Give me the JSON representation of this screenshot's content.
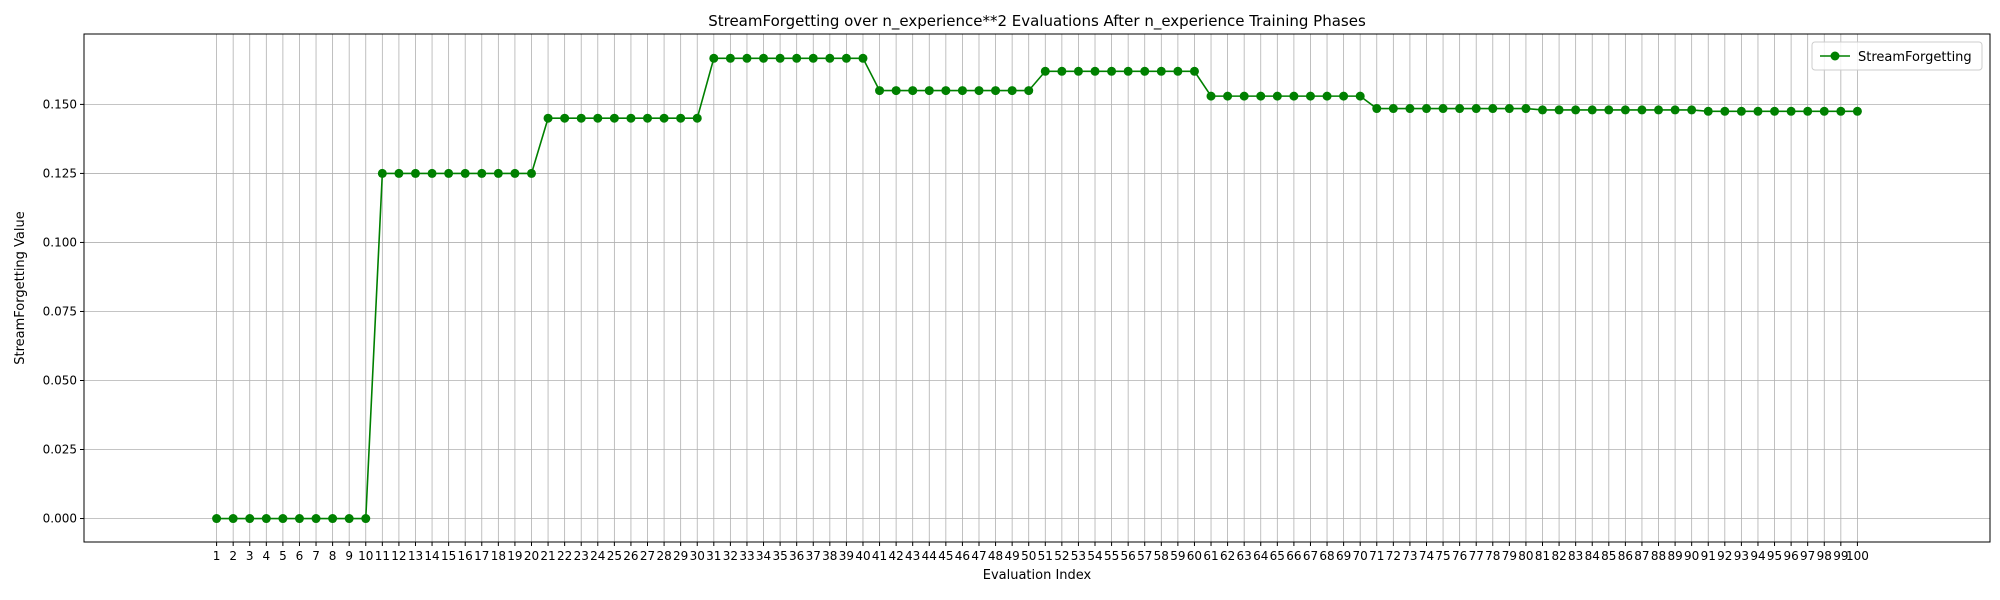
{
  "chart_data": {
    "type": "line",
    "title": "StreamForgetting over n_experience**2 Evaluations After n_experience Training Phases",
    "xlabel": "Evaluation Index",
    "ylabel": "StreamForgetting Value",
    "xlim": [
      -7,
      108
    ],
    "ylim": [
      -0.0085,
      0.1755
    ],
    "yticks": [
      "0.000",
      "0.025",
      "0.050",
      "0.075",
      "0.100",
      "0.125",
      "0.150"
    ],
    "grid": true,
    "legend": "top-right",
    "color": "#008000",
    "series": [
      {
        "name": "StreamForgetting",
        "x": [
          1,
          2,
          3,
          4,
          5,
          6,
          7,
          8,
          9,
          10,
          11,
          12,
          13,
          14,
          15,
          16,
          17,
          18,
          19,
          20,
          21,
          22,
          23,
          24,
          25,
          26,
          27,
          28,
          29,
          30,
          31,
          32,
          33,
          34,
          35,
          36,
          37,
          38,
          39,
          40,
          41,
          42,
          43,
          44,
          45,
          46,
          47,
          48,
          49,
          50,
          51,
          52,
          53,
          54,
          55,
          56,
          57,
          58,
          59,
          60,
          61,
          62,
          63,
          64,
          65,
          66,
          67,
          68,
          69,
          70,
          71,
          72,
          73,
          74,
          75,
          76,
          77,
          78,
          79,
          80,
          81,
          82,
          83,
          84,
          85,
          86,
          87,
          88,
          89,
          90,
          91,
          92,
          93,
          94,
          95,
          96,
          97,
          98,
          99,
          100
        ],
        "values": [
          0,
          0,
          0,
          0,
          0,
          0,
          0,
          0,
          0,
          0,
          0.125,
          0.125,
          0.125,
          0.125,
          0.125,
          0.125,
          0.125,
          0.125,
          0.125,
          0.125,
          0.145,
          0.145,
          0.145,
          0.145,
          0.145,
          0.145,
          0.145,
          0.145,
          0.145,
          0.145,
          0.1667,
          0.1667,
          0.1667,
          0.1667,
          0.1667,
          0.1667,
          0.1667,
          0.1667,
          0.1667,
          0.1667,
          0.155,
          0.155,
          0.155,
          0.155,
          0.155,
          0.155,
          0.155,
          0.155,
          0.155,
          0.155,
          0.162,
          0.162,
          0.162,
          0.162,
          0.162,
          0.162,
          0.162,
          0.162,
          0.162,
          0.162,
          0.153,
          0.153,
          0.153,
          0.153,
          0.153,
          0.153,
          0.153,
          0.153,
          0.153,
          0.153,
          0.1485,
          0.1485,
          0.1485,
          0.1485,
          0.1485,
          0.1485,
          0.1485,
          0.1485,
          0.1485,
          0.1485,
          0.148,
          0.148,
          0.148,
          0.148,
          0.148,
          0.148,
          0.148,
          0.148,
          0.148,
          0.148,
          0.1475,
          0.1475,
          0.1475,
          0.1475,
          0.1475,
          0.1475,
          0.1475,
          0.1475,
          0.1475,
          0.1475
        ]
      }
    ]
  }
}
